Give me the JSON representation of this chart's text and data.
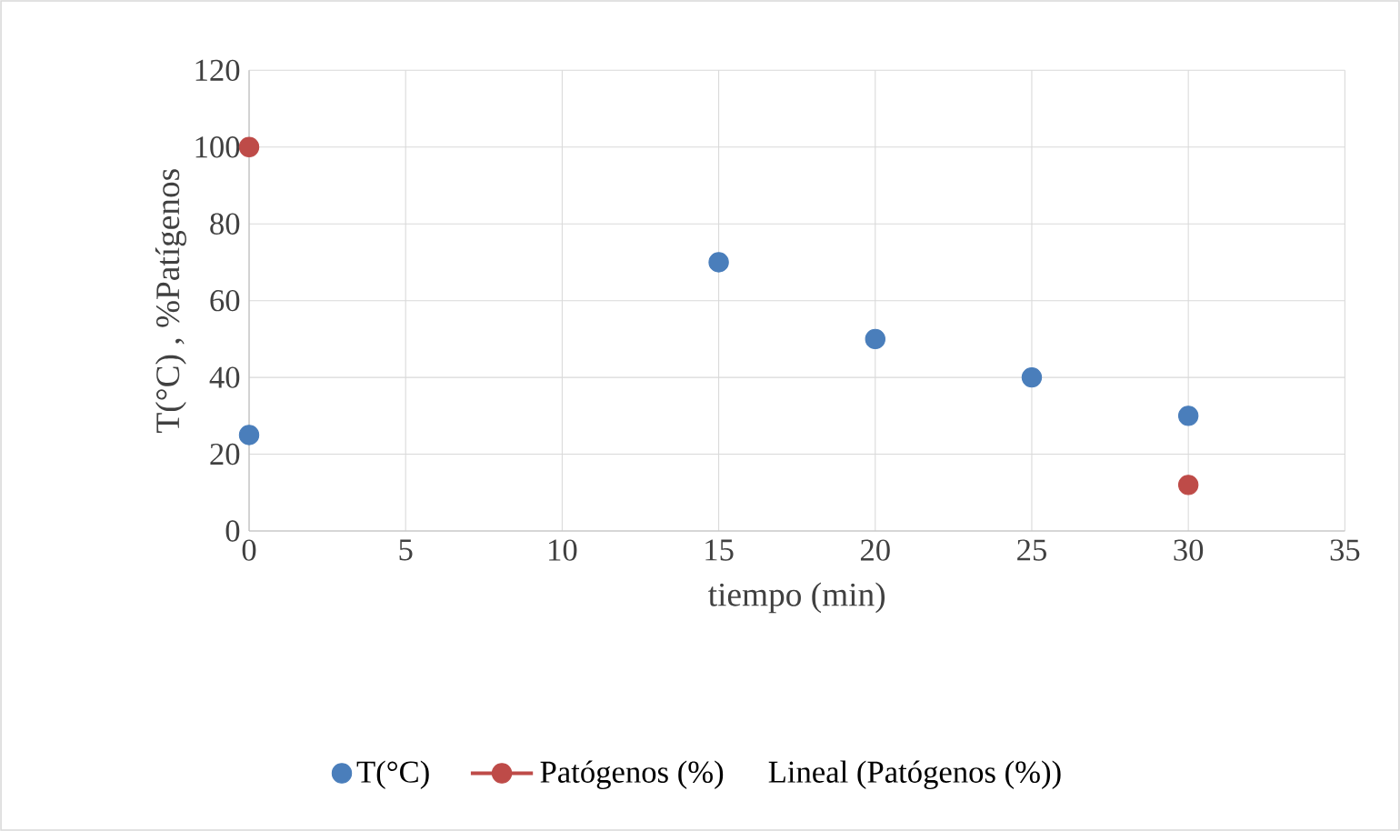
{
  "chart_data": {
    "type": "scatter",
    "xlabel": "tiempo (min)",
    "ylabel": "T(°C) ,  %Patígenos",
    "series": [
      {
        "name": "T(°C)",
        "color": "#4a7ebb",
        "x": [
          0,
          15,
          20,
          25,
          30
        ],
        "values": [
          25,
          70,
          50,
          40,
          30
        ]
      },
      {
        "name": "Patógenos (%)",
        "color": "#be4b48",
        "x": [
          0,
          30
        ],
        "values": [
          100,
          12
        ]
      }
    ],
    "xlim": [
      0,
      35
    ],
    "ylim": [
      0,
      120
    ],
    "xticks": [
      0,
      5,
      10,
      15,
      20,
      25,
      30,
      35
    ],
    "yticks": [
      0,
      20,
      40,
      60,
      80,
      100,
      120
    ],
    "grid": true,
    "legend": "bottom",
    "marker": "circle",
    "annotations": [
      "Lineal (Patógenos (%))"
    ]
  }
}
